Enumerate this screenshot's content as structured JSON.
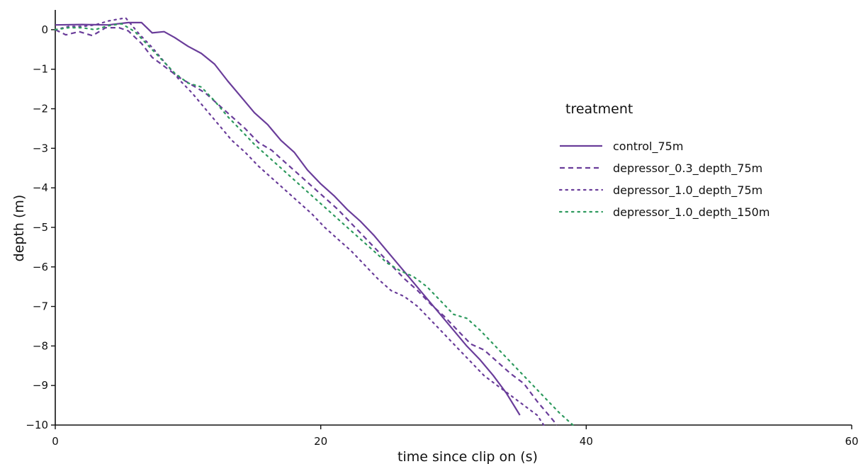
{
  "chart_data": {
    "type": "line",
    "title": "",
    "xlabel": "time since clip on (s)",
    "ylabel": "depth (m)",
    "xlim": [
      0,
      60
    ],
    "ylim": [
      -10,
      0.5
    ],
    "xticks": [
      0,
      20,
      40,
      60
    ],
    "yticks": [
      0,
      -1,
      -2,
      -3,
      -4,
      -5,
      -6,
      -7,
      -8,
      -9,
      -10
    ],
    "grid": false,
    "legend": {
      "title": "treatment",
      "placement": "right"
    },
    "series": [
      {
        "name": "control_75m",
        "color": "#6a3d9a",
        "style": "solid",
        "points": [
          [
            0,
            0.12
          ],
          [
            2,
            0.13
          ],
          [
            4,
            0.12
          ],
          [
            5.5,
            0.18
          ],
          [
            6.5,
            0.18
          ],
          [
            7.3,
            -0.08
          ],
          [
            8.2,
            -0.05
          ],
          [
            9,
            -0.2
          ],
          [
            10,
            -0.42
          ],
          [
            11,
            -0.6
          ],
          [
            12,
            -0.87
          ],
          [
            13,
            -1.3
          ],
          [
            14,
            -1.7
          ],
          [
            15,
            -2.1
          ],
          [
            16,
            -2.4
          ],
          [
            17,
            -2.8
          ],
          [
            18,
            -3.1
          ],
          [
            19,
            -3.55
          ],
          [
            20,
            -3.9
          ],
          [
            21,
            -4.2
          ],
          [
            22,
            -4.55
          ],
          [
            23,
            -4.85
          ],
          [
            24,
            -5.2
          ],
          [
            25,
            -5.6
          ],
          [
            26,
            -6.0
          ],
          [
            27,
            -6.4
          ],
          [
            28,
            -6.8
          ],
          [
            29,
            -7.2
          ],
          [
            30,
            -7.6
          ],
          [
            31,
            -8.0
          ],
          [
            32,
            -8.35
          ],
          [
            33,
            -8.75
          ],
          [
            34,
            -9.2
          ],
          [
            35,
            -9.75
          ]
        ]
      },
      {
        "name": "depressor_0.3_depth_75m",
        "color": "#6a3d9a",
        "style": "dashed",
        "points": [
          [
            0,
            0.0
          ],
          [
            0.8,
            -0.13
          ],
          [
            1.8,
            -0.05
          ],
          [
            2.8,
            -0.15
          ],
          [
            3.8,
            0.05
          ],
          [
            4.8,
            0.05
          ],
          [
            5.5,
            -0.03
          ],
          [
            6.5,
            -0.35
          ],
          [
            7.3,
            -0.7
          ],
          [
            8.3,
            -0.95
          ],
          [
            9.3,
            -1.2
          ],
          [
            10.3,
            -1.4
          ],
          [
            11.3,
            -1.6
          ],
          [
            12.3,
            -1.9
          ],
          [
            13.3,
            -2.2
          ],
          [
            14.3,
            -2.5
          ],
          [
            15.3,
            -2.85
          ],
          [
            16.3,
            -3.05
          ],
          [
            17.3,
            -3.35
          ],
          [
            18.3,
            -3.65
          ],
          [
            19.3,
            -3.95
          ],
          [
            20.3,
            -4.25
          ],
          [
            21.3,
            -4.55
          ],
          [
            22.3,
            -4.9
          ],
          [
            23.3,
            -5.25
          ],
          [
            24.3,
            -5.6
          ],
          [
            25.3,
            -5.95
          ],
          [
            26.3,
            -6.3
          ],
          [
            27.3,
            -6.6
          ],
          [
            28.3,
            -6.95
          ],
          [
            29.3,
            -7.25
          ],
          [
            30.3,
            -7.6
          ],
          [
            31.3,
            -7.95
          ],
          [
            32.3,
            -8.1
          ],
          [
            33.3,
            -8.4
          ],
          [
            34.3,
            -8.7
          ],
          [
            35.3,
            -8.95
          ],
          [
            36.3,
            -9.4
          ],
          [
            37.3,
            -9.8
          ],
          [
            37.8,
            -10.0
          ]
        ]
      },
      {
        "name": "depressor_1.0_depth_75m",
        "color": "#6a3d9a",
        "style": "dotted",
        "points": [
          [
            0,
            0.0
          ],
          [
            1,
            0.08
          ],
          [
            2,
            0.08
          ],
          [
            3,
            0.12
          ],
          [
            4,
            0.22
          ],
          [
            5.3,
            0.3
          ],
          [
            6.3,
            -0.1
          ],
          [
            7.3,
            -0.45
          ],
          [
            8.3,
            -0.85
          ],
          [
            9.3,
            -1.25
          ],
          [
            10.3,
            -1.6
          ],
          [
            11.3,
            -2.0
          ],
          [
            12.3,
            -2.4
          ],
          [
            13.3,
            -2.8
          ],
          [
            14.3,
            -3.1
          ],
          [
            15.3,
            -3.45
          ],
          [
            16.3,
            -3.75
          ],
          [
            17.3,
            -4.05
          ],
          [
            18.3,
            -4.35
          ],
          [
            19.3,
            -4.65
          ],
          [
            20.3,
            -5.0
          ],
          [
            21.3,
            -5.3
          ],
          [
            22.3,
            -5.6
          ],
          [
            23.3,
            -5.95
          ],
          [
            24.3,
            -6.3
          ],
          [
            25.3,
            -6.6
          ],
          [
            26.3,
            -6.75
          ],
          [
            27.3,
            -7.0
          ],
          [
            28.3,
            -7.35
          ],
          [
            29.3,
            -7.7
          ],
          [
            30.3,
            -8.05
          ],
          [
            31.3,
            -8.4
          ],
          [
            32.3,
            -8.75
          ],
          [
            33.3,
            -9.0
          ],
          [
            34.3,
            -9.25
          ],
          [
            35.3,
            -9.5
          ],
          [
            36.3,
            -9.75
          ],
          [
            36.8,
            -10.0
          ]
        ]
      },
      {
        "name": "depressor_1.0_depth_150m",
        "color": "#2e9a5e",
        "style": "dotted",
        "points": [
          [
            0,
            0.0
          ],
          [
            1,
            0.05
          ],
          [
            2,
            0.05
          ],
          [
            3,
            0.0
          ],
          [
            4,
            0.1
          ],
          [
            5,
            0.15
          ],
          [
            6,
            -0.05
          ],
          [
            7,
            -0.4
          ],
          [
            8,
            -0.75
          ],
          [
            9,
            -1.1
          ],
          [
            10,
            -1.35
          ],
          [
            11,
            -1.45
          ],
          [
            12,
            -1.8
          ],
          [
            13,
            -2.2
          ],
          [
            14,
            -2.55
          ],
          [
            15,
            -2.9
          ],
          [
            16,
            -3.2
          ],
          [
            17,
            -3.5
          ],
          [
            18,
            -3.8
          ],
          [
            19,
            -4.1
          ],
          [
            20,
            -4.4
          ],
          [
            21,
            -4.7
          ],
          [
            22,
            -5.0
          ],
          [
            23,
            -5.3
          ],
          [
            24,
            -5.6
          ],
          [
            25,
            -5.9
          ],
          [
            26,
            -6.1
          ],
          [
            27,
            -6.25
          ],
          [
            28,
            -6.5
          ],
          [
            29,
            -6.85
          ],
          [
            30,
            -7.2
          ],
          [
            31,
            -7.3
          ],
          [
            32,
            -7.6
          ],
          [
            33,
            -7.95
          ],
          [
            34,
            -8.3
          ],
          [
            35,
            -8.65
          ],
          [
            36,
            -9.0
          ],
          [
            37,
            -9.35
          ],
          [
            38,
            -9.7
          ],
          [
            39,
            -10.0
          ]
        ]
      }
    ]
  }
}
